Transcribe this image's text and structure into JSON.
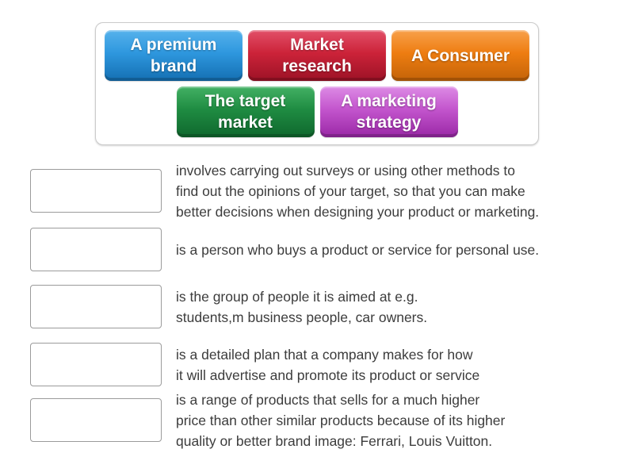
{
  "page": {
    "background": "#ffffff",
    "activity_type": "match-up"
  },
  "colors": {
    "definition_text": "#3c3c3c",
    "drop_box_border": "#9b9b9b",
    "panel_border": "#cbcbcb"
  },
  "word_bank": {
    "tiles": [
      {
        "label": "A premium\nbrand",
        "colors": {
          "highlight": "#56b2ec",
          "body": "#2e97de",
          "shadow": "#146fb2"
        }
      },
      {
        "label": "Market\nresearch",
        "colors": {
          "highlight": "#e25069",
          "body": "#cc2339",
          "shadow": "#9c1226"
        }
      },
      {
        "label": "A Consumer",
        "colors": {
          "highlight": "#f8a14b",
          "body": "#ee7d11",
          "shadow": "#c36308"
        }
      },
      {
        "label": "The target\nmarket",
        "colors": {
          "highlight": "#43b164",
          "body": "#1f8c42",
          "shadow": "#0f672d"
        }
      },
      {
        "label": "A marketing\nstrategy",
        "colors": {
          "highlight": "#dd8be5",
          "body": "#c355cd",
          "shadow": "#9a28a6"
        }
      }
    ]
  },
  "matches": [
    {
      "definition": "involves carrying out surveys or using other methods to\nfind out the opinions of your target, so that you can make\nbetter decisions when designing your product or marketing."
    },
    {
      "definition": "is a person who buys a product or service for personal use."
    },
    {
      "definition": "is the group of people it is aimed at e.g.\nstudents,m business people, car owners."
    },
    {
      "definition": "is a detailed plan that a company makes for how\nit will advertise and promote its product or service"
    },
    {
      "definition": "is a range of products that sells for a much higher\nprice than other similar products because of its higher\nquality or better brand image: Ferrari, Louis Vuitton."
    }
  ]
}
